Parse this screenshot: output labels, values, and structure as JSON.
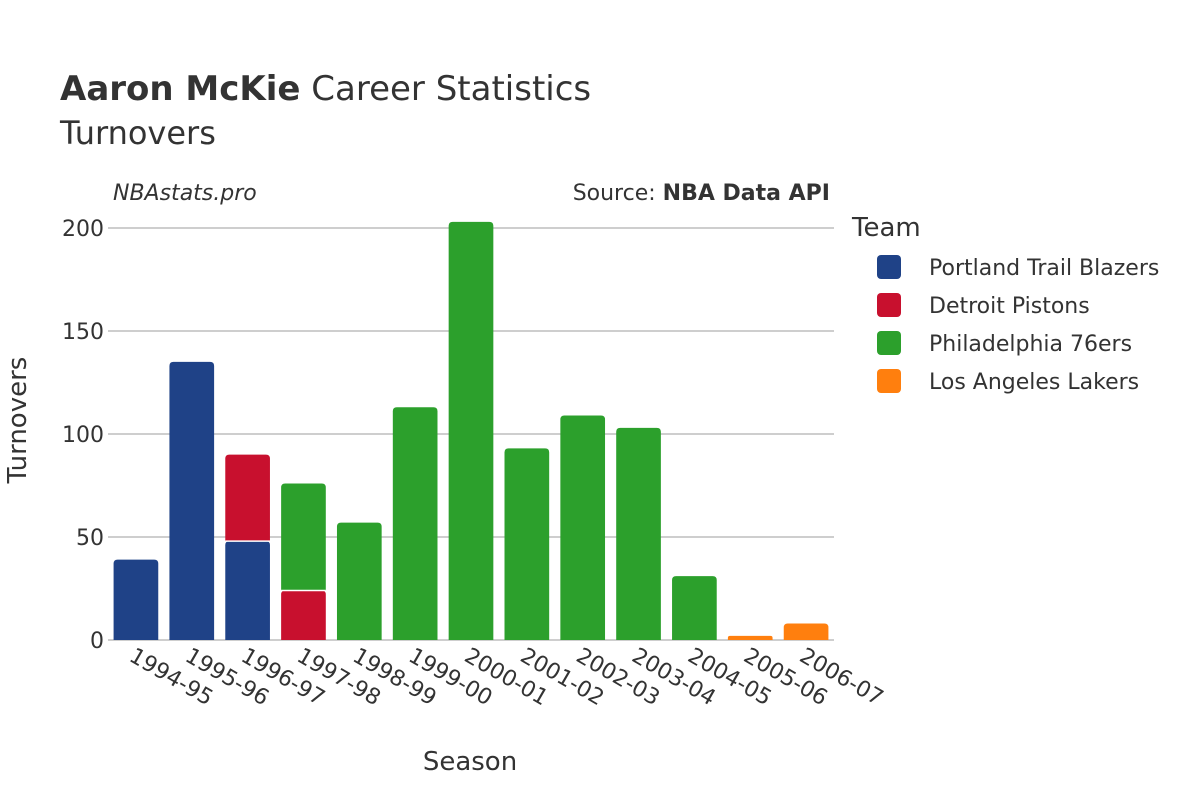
{
  "header": {
    "player_name": "Aaron McKie",
    "title_suffix": " Career Statistics",
    "subtitle": "Turnovers",
    "site": "NBAstats.pro",
    "source_prefix": "Source: ",
    "source_name": "NBA Data API"
  },
  "chart_data": {
    "type": "bar",
    "stacked": true,
    "xlabel": "Season",
    "ylabel": "Turnovers",
    "ylim": [
      0,
      210
    ],
    "yticks": [
      0,
      50,
      100,
      150,
      200
    ],
    "grid": true,
    "legend_title": "Team",
    "legend_position": "right",
    "categories": [
      "1994-95",
      "1995-96",
      "1996-97",
      "1997-98",
      "1998-99",
      "1999-00",
      "2000-01",
      "2001-02",
      "2002-03",
      "2003-04",
      "2004-05",
      "2005-06",
      "2006-07"
    ],
    "series": [
      {
        "name": "Portland Trail Blazers",
        "color": "#1f4287",
        "values": [
          39,
          135,
          48,
          0,
          0,
          0,
          0,
          0,
          0,
          0,
          0,
          0,
          0
        ]
      },
      {
        "name": "Detroit Pistons",
        "color": "#c8102e",
        "values": [
          0,
          0,
          42,
          24,
          0,
          0,
          0,
          0,
          0,
          0,
          0,
          0,
          0
        ]
      },
      {
        "name": "Philadelphia 76ers",
        "color": "#2ca02c",
        "values": [
          0,
          0,
          0,
          52,
          57,
          113,
          203,
          93,
          109,
          103,
          31,
          0,
          0
        ]
      },
      {
        "name": "Los Angeles Lakers",
        "color": "#ff7f0e",
        "values": [
          0,
          0,
          0,
          0,
          0,
          0,
          0,
          0,
          0,
          0,
          0,
          2,
          8
        ]
      }
    ]
  }
}
